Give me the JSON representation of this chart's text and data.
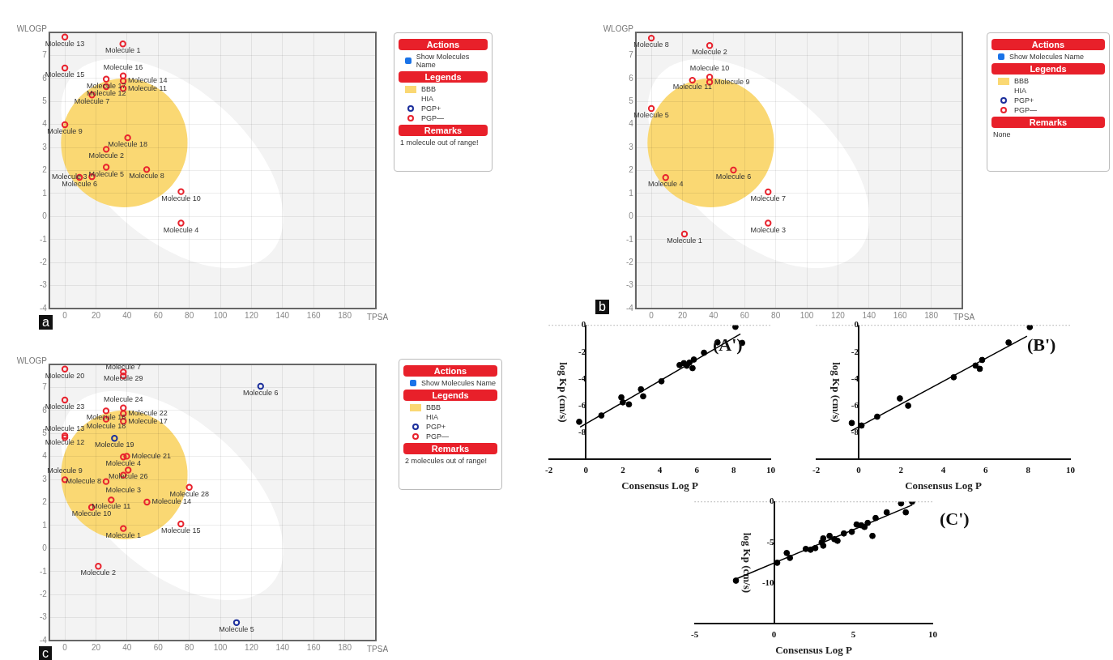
{
  "chart_data": [
    {
      "type": "scatter",
      "title": "a",
      "xlabel": "TPSA",
      "ylabel": "WLOGP",
      "xlim": [
        -10,
        200
      ],
      "ylim": [
        -4,
        8
      ],
      "xticks": [
        0,
        20,
        40,
        60,
        80,
        100,
        120,
        140,
        160,
        180
      ],
      "yticks": [
        -4,
        -3,
        -2,
        -1,
        0,
        1,
        2,
        3,
        4,
        5,
        6,
        7
      ],
      "grid": true,
      "marker": "circle",
      "legend": "right",
      "legend_title": "Legends",
      "annotations": [
        "Actions",
        "Show Molecules Name",
        "BBB",
        "HIA",
        "Remarks",
        "1 molecule out of range!"
      ],
      "series": [
        {
          "name": "PGP+",
          "color": "#1c2f9c"
        },
        {
          "name": "PGP—",
          "color": "#e8232e",
          "x": [
            0,
            37.3,
            0,
            26.6,
            37.5,
            37.5,
            26.6,
            37.5,
            17.4,
            0,
            40.4,
            26.6,
            26.6,
            52.6,
            9.4,
            17.4,
            74.7,
            74.7
          ],
          "values": [
            7.8,
            7.5,
            6.45,
            5.97,
            6.11,
            5.89,
            5.64,
            5.56,
            5.28,
            3.99,
            3.42,
            2.92,
            2.14,
            2.04,
            1.7,
            1.73,
            1.08,
            -0.29
          ],
          "value_labels": [
            "Molecule 13",
            "Molecule 1",
            "Molecule 15",
            "Molecule 17",
            "Molecule 16",
            "Molecule 14",
            "Molecule 12",
            "Molecule 11",
            "Molecule 7",
            "Molecule 9",
            "Molecule 18",
            "Molecule 2",
            "Molecule 5",
            "Molecule 8",
            "Molecule 6",
            "Molecule 3",
            "Molecule 10",
            "Molecule 4"
          ]
        }
      ]
    },
    {
      "type": "scatter",
      "title": "b",
      "xlabel": "TPSA",
      "ylabel": "WLOGP",
      "xlim": [
        -10,
        200
      ],
      "ylim": [
        -4,
        8
      ],
      "xticks": [
        0,
        20,
        40,
        60,
        80,
        100,
        120,
        140,
        160,
        180
      ],
      "yticks": [
        -4,
        -3,
        -2,
        -1,
        0,
        1,
        2,
        3,
        4,
        5,
        6,
        7
      ],
      "grid": true,
      "marker": "circle",
      "legend": "right",
      "legend_title": "Legends",
      "annotations": [
        "Actions",
        "Show Molecules Name",
        "BBB",
        "HIA",
        "Remarks",
        "None"
      ],
      "series": [
        {
          "name": "PGP+",
          "color": "#1c2f9c"
        },
        {
          "name": "PGP—",
          "color": "#e8232e",
          "x": [
            0,
            37.5,
            26.4,
            37.5,
            37.5,
            0,
            9.2,
            52.8,
            75.1,
            75.1,
            21.3
          ],
          "values": [
            7.75,
            7.43,
            5.92,
            6.06,
            5.84,
            4.69,
            1.69,
            2.02,
            1.07,
            -0.29,
            -0.76
          ],
          "value_labels": [
            "Molecule 8",
            "Molecule 2",
            "Molecule 11",
            "Molecule 10",
            "Molecule 9",
            "Molecule 5",
            "Molecule 4",
            "Molecule 6",
            "Molecule 7",
            "Molecule 3",
            "Molecule 1"
          ]
        }
      ]
    },
    {
      "type": "scatter",
      "title": "c",
      "xlabel": "TPSA",
      "ylabel": "WLOGP",
      "xlim": [
        -10,
        200
      ],
      "ylim": [
        -4,
        8
      ],
      "xticks": [
        0,
        20,
        40,
        60,
        80,
        100,
        120,
        140,
        160,
        180
      ],
      "yticks": [
        -4,
        -3,
        -2,
        -1,
        0,
        1,
        2,
        3,
        4,
        5,
        6,
        7
      ],
      "grid": true,
      "marker": "circle",
      "legend": "right",
      "legend_title": "Legends",
      "annotations": [
        "Actions",
        "Show Molecules Name",
        "BBB",
        "HIA",
        "Remarks",
        "2 molecules out of range!"
      ],
      "series": [
        {
          "name": "PGP+",
          "color": "#1c2f9c",
          "x": [
            125.9,
            31.9,
            110.4
          ],
          "values": [
            7.05,
            4.79,
            -3.22
          ],
          "value_labels": [
            "Molecule 6",
            "Molecule 19",
            "Molecule 5"
          ]
        },
        {
          "name": "PGP—",
          "color": "#e8232e",
          "x": [
            0,
            37.6,
            37.6,
            0,
            26.5,
            37.6,
            37.6,
            26.5,
            37.6,
            0,
            0,
            37.6,
            39.8,
            40.7,
            37.6,
            26.5,
            0,
            80,
            29.8,
            52.8,
            17.2,
            74.6,
            37.6,
            21.5
          ],
          "values": [
            7.8,
            7.67,
            7.5,
            6.45,
            5.98,
            6.11,
            5.86,
            5.62,
            5.53,
            4.9,
            4.82,
            3.98,
            4.01,
            3.41,
            3.19,
            2.91,
            2.99,
            2.66,
            2.11,
            2.02,
            1.79,
            1.07,
            0.87,
            -0.77
          ],
          "value_labels": [
            "Molecule 20",
            "Molecule 29",
            "Molecule 7",
            "Molecule 23",
            "Molecule 16",
            "Molecule 24",
            "Molecule 22",
            "Molecule 18",
            "Molecule 17",
            "Molecule 12",
            "Molecule 13",
            "Molecule 4",
            "Molecule 21",
            "Molecule 26",
            "Molecule 3",
            "Molecule 8",
            "Molecule 9",
            "Molecule 28",
            "Molecule 11",
            "Molecule 14",
            "Molecule 10",
            "Molecule 15",
            "Molecule 1",
            "Molecule 2"
          ]
        }
      ]
    },
    {
      "type": "scatter",
      "title": "(A')",
      "xlabel": "Consensus Log P",
      "ylabel": "log Kp (cm/s)",
      "xlim": [
        -2,
        10
      ],
      "ylim": [
        -10,
        0
      ],
      "xticks": [
        -2,
        0,
        2,
        4,
        6,
        8,
        10
      ],
      "yticks": [
        -8,
        -6,
        -4,
        -2,
        0
      ],
      "marker": "circle",
      "ref_lines": [
        {
          "axis": "y",
          "value": 0,
          "line_style": "dotted",
          "color": "#999999"
        }
      ],
      "series": [
        {
          "color": "#000000",
          "x": [
            -0.36,
            0.84,
            1.92,
            2.0,
            2.33,
            2.98,
            3.1,
            4.09,
            5.07,
            5.3,
            5.46,
            5.6,
            5.77,
            5.84,
            6.39,
            7.12,
            8.09,
            8.45
          ],
          "values": [
            -7.2,
            -6.73,
            -5.38,
            -5.75,
            -5.9,
            -4.78,
            -5.3,
            -4.18,
            -2.97,
            -2.83,
            -3.02,
            -2.79,
            -3.2,
            -2.56,
            -2.05,
            -1.28,
            -0.12,
            -1.32
          ]
        },
        {
          "type": "line",
          "color": "#000000",
          "marker": "none",
          "x": [
            -0.31,
            8.36
          ],
          "values": [
            -7.6,
            -0.65
          ]
        }
      ]
    },
    {
      "type": "scatter",
      "title": "(B')",
      "xlabel": "Consensus Log P",
      "ylabel": "log Kp (cm/s)",
      "xlim": [
        -2,
        10
      ],
      "ylim": [
        -10,
        0
      ],
      "xticks": [
        -2,
        0,
        2,
        4,
        6,
        8,
        10
      ],
      "yticks": [
        -8,
        -6,
        -4,
        -2,
        0
      ],
      "marker": "circle",
      "ref_lines": [
        {
          "axis": "y",
          "value": 0,
          "line_style": "dotted",
          "color": "#999999"
        }
      ],
      "series": [
        {
          "color": "#000000",
          "x": [
            -0.32,
            0.14,
            0.88,
            1.95,
            2.34,
            4.49,
            5.52,
            5.72,
            5.83,
            7.08,
            8.08
          ],
          "values": [
            -7.29,
            -7.48,
            -6.82,
            -5.46,
            -6.0,
            -3.88,
            -3.01,
            -3.25,
            -2.59,
            -1.29,
            -0.14
          ]
        },
        {
          "type": "line",
          "color": "#000000",
          "marker": "none",
          "x": [
            -0.35,
            7.95
          ],
          "values": [
            -7.88,
            -0.82
          ]
        }
      ]
    },
    {
      "type": "scatter",
      "title": "(C')",
      "xlabel": "Consensus Log P",
      "ylabel": "log Kp (cm/s)",
      "xlim": [
        -5,
        10
      ],
      "ylim": [
        -15,
        0
      ],
      "xticks": [
        -5,
        0,
        5,
        10
      ],
      "yticks": [
        -10,
        -5,
        0
      ],
      "marker": "circle",
      "ref_lines": [
        {
          "axis": "y",
          "value": 0,
          "line_style": "dotted",
          "color": "#999999"
        }
      ],
      "series": [
        {
          "color": "#000000",
          "x": [
            -2.4,
            0.2,
            0.8,
            1.0,
            2.0,
            2.3,
            2.6,
            3.0,
            3.1,
            3.1,
            3.5,
            3.8,
            4.0,
            4.4,
            4.9,
            5.2,
            5.5,
            5.7,
            5.9,
            6.2,
            6.4,
            7.1,
            8.0,
            8.3,
            8.7
          ],
          "values": [
            -9.7,
            -7.5,
            -6.3,
            -6.9,
            -5.8,
            -5.9,
            -5.7,
            -5.0,
            -4.5,
            -5.4,
            -4.2,
            -4.6,
            -4.8,
            -3.9,
            -3.7,
            -2.8,
            -2.9,
            -3.1,
            -2.6,
            -4.2,
            -2.0,
            -1.3,
            -0.2,
            -1.3,
            0.0
          ]
        },
        {
          "type": "line",
          "color": "#000000",
          "marker": "none",
          "x": [
            -2.4,
            8.7
          ],
          "values": [
            -9.5,
            -0.4
          ]
        }
      ]
    }
  ]
}
